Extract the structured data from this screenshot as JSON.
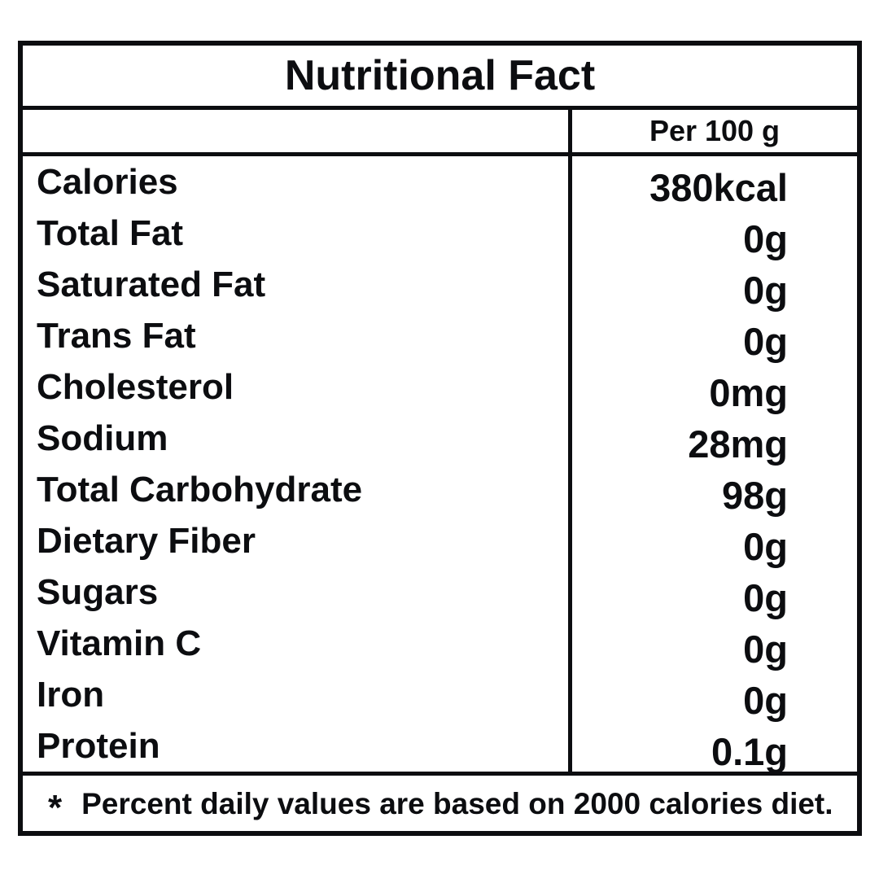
{
  "title": "Nutritional Fact",
  "header": {
    "column_label": "Per 100 g"
  },
  "rows": [
    {
      "label": "Calories",
      "value": "380kcal"
    },
    {
      "label": "Total Fat",
      "value": "0g"
    },
    {
      "label": "Saturated Fat",
      "value": "0g"
    },
    {
      "label": "Trans Fat",
      "value": "0g"
    },
    {
      "label": "Cholesterol",
      "value": "0mg"
    },
    {
      "label": "Sodium",
      "value": "28mg"
    },
    {
      "label": "Total Carbohydrate",
      "value": "98g"
    },
    {
      "label": "Dietary Fiber",
      "value": "0g"
    },
    {
      "label": "Sugars",
      "value": "0g"
    },
    {
      "label": "Vitamin C",
      "value": "0g"
    },
    {
      "label": "Iron",
      "value": "0g"
    },
    {
      "label": "Protein",
      "value": "0.1g"
    }
  ],
  "footnote": {
    "marker": "*",
    "text": "Percent daily values are based on 2000 calories diet."
  },
  "colors": {
    "text": "#0c0d10",
    "border": "#0c0d10",
    "background": "#ffffff"
  }
}
